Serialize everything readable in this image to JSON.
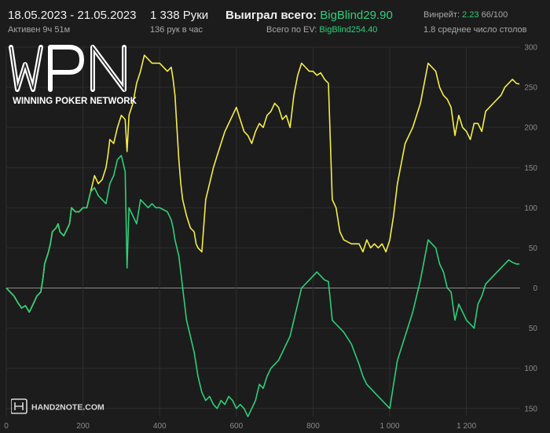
{
  "header": {
    "date_range": "18.05.2023 - 21.05.2023",
    "active_time": "Активен 9ч 51м",
    "hands": "1 338 Руки",
    "hands_per_hour": "136 рук в час",
    "won_label": "Выиграл всего:",
    "won_value": "BigBlind29.90",
    "ev_label": "Всего по EV:",
    "ev_value": "BigBlind254.40",
    "winrate_label": "Винрейт:",
    "winrate_value": "2.23",
    "winrate_hands": "66/100",
    "avg_tables": "1.8 среднее число столов"
  },
  "logo": {
    "text": "WPN",
    "subtitle": "WINNING POKER NETWORK"
  },
  "watermark": {
    "text": "HAND2NOTE.COM"
  },
  "colors": {
    "background": "#1c1c1c",
    "ev_line": "#f5ed4a",
    "winnings_line": "#2ecf7a",
    "grid": "#2e2e2e",
    "zero_line": "#8a8a8a"
  },
  "chart_data": {
    "type": "line",
    "title": "",
    "xlabel": "",
    "ylabel": "",
    "xlim": [
      0,
      1340
    ],
    "ylim": [
      -160,
      300
    ],
    "grid": true,
    "x_ticks": [
      0,
      200,
      400,
      600,
      800,
      1000,
      1200
    ],
    "x_tick_labels": [
      "0",
      "200",
      "400",
      "600",
      "800",
      "1 000",
      "1 200"
    ],
    "y_ticks": [
      300,
      250,
      200,
      150,
      100,
      50,
      0,
      -50,
      -100,
      -150
    ],
    "y_tick_labels": [
      "300",
      "250",
      "200",
      "150",
      "100",
      "50",
      "0",
      "50",
      "100",
      "150"
    ],
    "series": [
      {
        "key": "allin_ev",
        "color": "#f5ed4a",
        "points": [
          [
            0,
            0
          ],
          [
            10,
            -5
          ],
          [
            20,
            -10
          ],
          [
            30,
            -18
          ],
          [
            40,
            -25
          ],
          [
            50,
            -22
          ],
          [
            60,
            -30
          ],
          [
            70,
            -20
          ],
          [
            80,
            -10
          ],
          [
            90,
            -5
          ],
          [
            95,
            10
          ],
          [
            100,
            30
          ],
          [
            110,
            45
          ],
          [
            115,
            55
          ],
          [
            120,
            70
          ],
          [
            130,
            75
          ],
          [
            135,
            80
          ],
          [
            140,
            70
          ],
          [
            150,
            65
          ],
          [
            160,
            75
          ],
          [
            165,
            80
          ],
          [
            170,
            100
          ],
          [
            180,
            95
          ],
          [
            190,
            95
          ],
          [
            200,
            100
          ],
          [
            210,
            100
          ],
          [
            220,
            120
          ],
          [
            230,
            140
          ],
          [
            240,
            130
          ],
          [
            250,
            135
          ],
          [
            260,
            150
          ],
          [
            265,
            165
          ],
          [
            270,
            185
          ],
          [
            280,
            180
          ],
          [
            290,
            200
          ],
          [
            300,
            215
          ],
          [
            310,
            210
          ],
          [
            315,
            170
          ],
          [
            320,
            215
          ],
          [
            330,
            230
          ],
          [
            340,
            255
          ],
          [
            350,
            270
          ],
          [
            360,
            290
          ],
          [
            370,
            285
          ],
          [
            380,
            280
          ],
          [
            390,
            280
          ],
          [
            400,
            280
          ],
          [
            420,
            270
          ],
          [
            430,
            275
          ],
          [
            435,
            260
          ],
          [
            440,
            240
          ],
          [
            450,
            160
          ],
          [
            455,
            130
          ],
          [
            460,
            110
          ],
          [
            470,
            90
          ],
          [
            480,
            75
          ],
          [
            490,
            70
          ],
          [
            495,
            55
          ],
          [
            500,
            50
          ],
          [
            510,
            45
          ],
          [
            520,
            110
          ],
          [
            530,
            130
          ],
          [
            540,
            150
          ],
          [
            550,
            165
          ],
          [
            560,
            180
          ],
          [
            570,
            195
          ],
          [
            580,
            205
          ],
          [
            590,
            215
          ],
          [
            600,
            225
          ],
          [
            610,
            210
          ],
          [
            620,
            195
          ],
          [
            630,
            190
          ],
          [
            640,
            180
          ],
          [
            650,
            195
          ],
          [
            660,
            205
          ],
          [
            670,
            200
          ],
          [
            680,
            215
          ],
          [
            690,
            220
          ],
          [
            700,
            230
          ],
          [
            710,
            225
          ],
          [
            720,
            210
          ],
          [
            730,
            215
          ],
          [
            740,
            200
          ],
          [
            750,
            240
          ],
          [
            760,
            265
          ],
          [
            770,
            280
          ],
          [
            780,
            275
          ],
          [
            790,
            270
          ],
          [
            800,
            270
          ],
          [
            810,
            265
          ],
          [
            820,
            268
          ],
          [
            830,
            260
          ],
          [
            840,
            255
          ],
          [
            850,
            110
          ],
          [
            860,
            100
          ],
          [
            870,
            70
          ],
          [
            880,
            60
          ],
          [
            900,
            55
          ],
          [
            920,
            55
          ],
          [
            930,
            45
          ],
          [
            940,
            60
          ],
          [
            950,
            50
          ],
          [
            960,
            55
          ],
          [
            970,
            50
          ],
          [
            980,
            55
          ],
          [
            990,
            45
          ],
          [
            1000,
            60
          ],
          [
            1010,
            90
          ],
          [
            1020,
            130
          ],
          [
            1040,
            180
          ],
          [
            1060,
            200
          ],
          [
            1080,
            230
          ],
          [
            1100,
            280
          ],
          [
            1110,
            275
          ],
          [
            1120,
            270
          ],
          [
            1130,
            250
          ],
          [
            1140,
            240
          ],
          [
            1150,
            235
          ],
          [
            1160,
            225
          ],
          [
            1170,
            190
          ],
          [
            1180,
            215
          ],
          [
            1190,
            200
          ],
          [
            1200,
            195
          ],
          [
            1210,
            185
          ],
          [
            1220,
            205
          ],
          [
            1230,
            205
          ],
          [
            1240,
            195
          ],
          [
            1250,
            220
          ],
          [
            1260,
            225
          ],
          [
            1270,
            230
          ],
          [
            1280,
            235
          ],
          [
            1290,
            240
          ],
          [
            1300,
            250
          ],
          [
            1310,
            255
          ],
          [
            1320,
            260
          ],
          [
            1330,
            255
          ],
          [
            1338,
            254
          ]
        ]
      },
      {
        "key": "won",
        "color": "#2ecf7a",
        "points": [
          [
            0,
            0
          ],
          [
            10,
            -5
          ],
          [
            20,
            -10
          ],
          [
            30,
            -18
          ],
          [
            40,
            -25
          ],
          [
            50,
            -22
          ],
          [
            60,
            -30
          ],
          [
            70,
            -20
          ],
          [
            80,
            -10
          ],
          [
            90,
            -5
          ],
          [
            95,
            10
          ],
          [
            100,
            30
          ],
          [
            110,
            45
          ],
          [
            115,
            55
          ],
          [
            120,
            70
          ],
          [
            130,
            75
          ],
          [
            135,
            80
          ],
          [
            140,
            70
          ],
          [
            150,
            65
          ],
          [
            160,
            75
          ],
          [
            165,
            80
          ],
          [
            170,
            100
          ],
          [
            180,
            95
          ],
          [
            190,
            95
          ],
          [
            200,
            100
          ],
          [
            210,
            100
          ],
          [
            220,
            120
          ],
          [
            230,
            125
          ],
          [
            240,
            115
          ],
          [
            250,
            110
          ],
          [
            260,
            105
          ],
          [
            270,
            130
          ],
          [
            280,
            140
          ],
          [
            290,
            160
          ],
          [
            300,
            165
          ],
          [
            310,
            145
          ],
          [
            315,
            25
          ],
          [
            320,
            100
          ],
          [
            330,
            90
          ],
          [
            340,
            80
          ],
          [
            350,
            110
          ],
          [
            360,
            105
          ],
          [
            370,
            100
          ],
          [
            380,
            105
          ],
          [
            390,
            100
          ],
          [
            400,
            100
          ],
          [
            420,
            95
          ],
          [
            430,
            85
          ],
          [
            435,
            75
          ],
          [
            440,
            60
          ],
          [
            450,
            40
          ],
          [
            455,
            20
          ],
          [
            460,
            0
          ],
          [
            470,
            -40
          ],
          [
            480,
            -60
          ],
          [
            490,
            -80
          ],
          [
            495,
            -95
          ],
          [
            500,
            -110
          ],
          [
            510,
            -130
          ],
          [
            520,
            -140
          ],
          [
            530,
            -135
          ],
          [
            540,
            -145
          ],
          [
            550,
            -150
          ],
          [
            560,
            -140
          ],
          [
            570,
            -145
          ],
          [
            580,
            -135
          ],
          [
            590,
            -140
          ],
          [
            600,
            -150
          ],
          [
            610,
            -145
          ],
          [
            620,
            -150
          ],
          [
            630,
            -160
          ],
          [
            640,
            -150
          ],
          [
            650,
            -140
          ],
          [
            660,
            -120
          ],
          [
            670,
            -125
          ],
          [
            680,
            -110
          ],
          [
            690,
            -100
          ],
          [
            700,
            -95
          ],
          [
            710,
            -90
          ],
          [
            720,
            -80
          ],
          [
            730,
            -70
          ],
          [
            740,
            -60
          ],
          [
            750,
            -40
          ],
          [
            760,
            -20
          ],
          [
            770,
            0
          ],
          [
            780,
            5
          ],
          [
            790,
            10
          ],
          [
            800,
            15
          ],
          [
            810,
            20
          ],
          [
            820,
            15
          ],
          [
            830,
            10
          ],
          [
            840,
            8
          ],
          [
            850,
            -40
          ],
          [
            860,
            -45
          ],
          [
            870,
            -50
          ],
          [
            880,
            -55
          ],
          [
            900,
            -70
          ],
          [
            920,
            -95
          ],
          [
            930,
            -110
          ],
          [
            940,
            -120
          ],
          [
            950,
            -125
          ],
          [
            960,
            -130
          ],
          [
            970,
            -135
          ],
          [
            980,
            -140
          ],
          [
            990,
            -145
          ],
          [
            1000,
            -150
          ],
          [
            1010,
            -120
          ],
          [
            1020,
            -90
          ],
          [
            1040,
            -60
          ],
          [
            1060,
            -30
          ],
          [
            1080,
            10
          ],
          [
            1100,
            60
          ],
          [
            1110,
            55
          ],
          [
            1120,
            50
          ],
          [
            1130,
            30
          ],
          [
            1140,
            20
          ],
          [
            1150,
            0
          ],
          [
            1160,
            -5
          ],
          [
            1170,
            -40
          ],
          [
            1180,
            -20
          ],
          [
            1190,
            -30
          ],
          [
            1200,
            -40
          ],
          [
            1210,
            -45
          ],
          [
            1220,
            -50
          ],
          [
            1230,
            -20
          ],
          [
            1240,
            -10
          ],
          [
            1250,
            5
          ],
          [
            1260,
            10
          ],
          [
            1270,
            15
          ],
          [
            1280,
            20
          ],
          [
            1290,
            25
          ],
          [
            1300,
            30
          ],
          [
            1310,
            35
          ],
          [
            1320,
            32
          ],
          [
            1330,
            30
          ],
          [
            1338,
            30
          ]
        ]
      }
    ]
  }
}
